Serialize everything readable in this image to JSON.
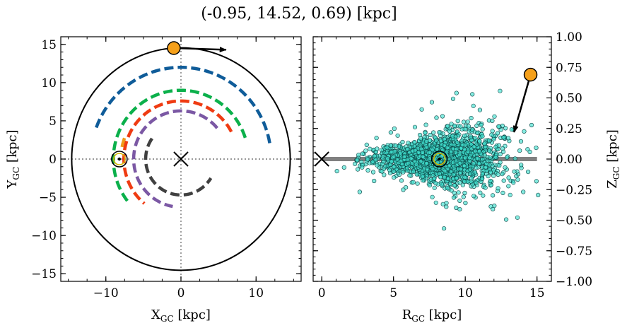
{
  "title": "(-0.95, 14.52, 0.69) [kpc]",
  "colors": {
    "orbit": "#000000",
    "sun": "#000000",
    "star": "#f5a01a",
    "scatter_fill": "#40e0d0",
    "scatter_edge": "#0a4040",
    "disk_line": "#808080",
    "arm_blue": "#0f5c99",
    "arm_green": "#0bb04b",
    "arm_orange": "#f09a1a",
    "arm_red": "#ef3b12",
    "arm_purple": "#7b58a4",
    "arm_gray": "#404040"
  },
  "chart_data": [
    {
      "type": "line",
      "name": "galaxy-top-view",
      "xlabel_base": "X",
      "ylabel_base": "Y",
      "label_sub": "GC",
      "label_unit": " [kpc]",
      "xlim": [
        -16,
        16
      ],
      "ylim": [
        -16,
        16
      ],
      "xticks": [
        -10,
        0,
        10
      ],
      "xtick_labels": [
        "−10",
        "0",
        "10"
      ],
      "yticks": [
        -15,
        -10,
        -5,
        0,
        5,
        10,
        15
      ],
      "ytick_labels": [
        "−15",
        "−10",
        "−5",
        "0",
        "5",
        "10",
        "15"
      ],
      "orbit_radius": 14.55,
      "galactic_center": [
        0,
        0
      ],
      "sun_position": [
        -8.2,
        0.0
      ],
      "star_position": [
        -0.95,
        14.52
      ],
      "velocity_arrow": {
        "from": [
          -0.95,
          14.52
        ],
        "to": [
          6.0,
          14.3
        ]
      },
      "spiral_arms": [
        {
          "color_key": "arm_blue",
          "radius": 12.0,
          "start_deg": 10,
          "end_deg": 162
        },
        {
          "color_key": "arm_green",
          "radius": 9.0,
          "start_deg": 18,
          "end_deg": 218
        },
        {
          "color_key": "arm_orange",
          "radius": 8.0,
          "start_deg": 160,
          "end_deg": 172
        },
        {
          "color_key": "arm_red",
          "radius": 7.6,
          "start_deg": 28,
          "end_deg": 230
        },
        {
          "color_key": "arm_purple",
          "radius": 6.3,
          "start_deg": 40,
          "end_deg": 260
        },
        {
          "color_key": "arm_gray",
          "radius": 4.7,
          "start_deg": 145,
          "end_deg": 328
        }
      ]
    },
    {
      "type": "scatter",
      "name": "galaxy-side-view",
      "xlabel_base": "R",
      "ylabel_base": "Z",
      "label_sub": "GC",
      "label_unit": " [kpc]",
      "xlim": [
        -0.6,
        16.0
      ],
      "ylim": [
        -1.0,
        1.0
      ],
      "xticks": [
        0,
        5,
        10,
        15
      ],
      "xtick_labels": [
        "0",
        "5",
        "10",
        "15"
      ],
      "yticks": [
        -1.0,
        -0.75,
        -0.5,
        -0.25,
        0.0,
        0.25,
        0.5,
        0.75,
        1.0
      ],
      "ytick_labels": [
        "−1.00",
        "−0.75",
        "−0.50",
        "−0.25",
        "0.00",
        "0.25",
        "0.50",
        "0.75",
        "1.00"
      ],
      "galactic_center": [
        0,
        0
      ],
      "sun_position": [
        8.2,
        0.0
      ],
      "star_position": [
        14.55,
        0.69
      ],
      "velocity_arrow": {
        "from": [
          14.55,
          0.69
        ],
        "to": [
          13.4,
          0.22
        ]
      },
      "disk_line": {
        "x": [
          0,
          15.0
        ],
        "z": 0
      },
      "point_cloud": {
        "count": 1900,
        "center_r": 8.3,
        "sigma_r": 2.3,
        "r_min": 0.5,
        "r_max": 15.3,
        "base_sigma_z": 0.06,
        "flare": 0.11
      }
    }
  ]
}
